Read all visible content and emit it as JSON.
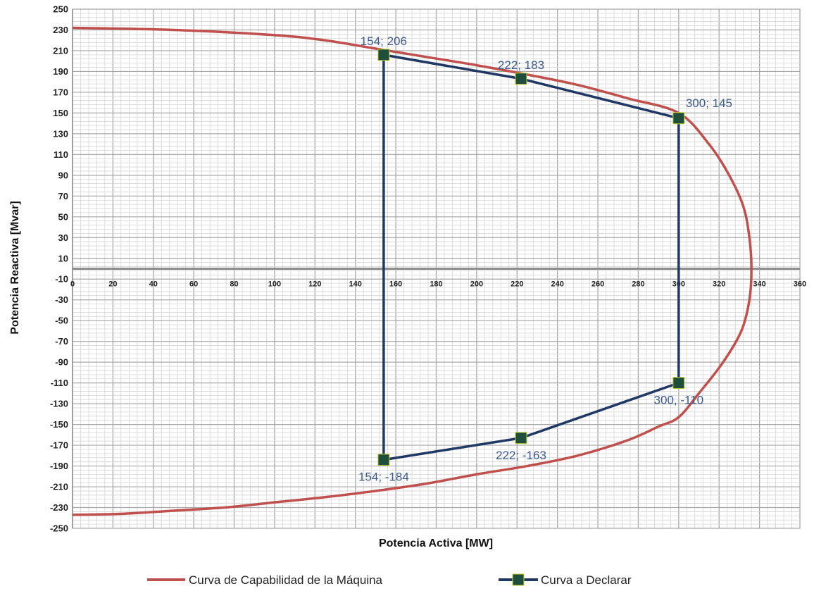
{
  "chart_data": {
    "type": "line",
    "title": "",
    "xlabel": "Potencia Activa [MW]",
    "ylabel": "Potencia Reactiva [Mvar]",
    "xlim": [
      0,
      360
    ],
    "ylim": [
      -250,
      250
    ],
    "x_ticks": [
      0,
      20,
      40,
      60,
      80,
      100,
      120,
      140,
      160,
      180,
      200,
      220,
      240,
      260,
      280,
      300,
      320,
      340,
      360
    ],
    "x_tick_labels": [
      "0",
      "20",
      "40",
      "60",
      "80",
      "100",
      "120",
      "140",
      "160",
      "180",
      "200",
      "220",
      "240",
      "260",
      "280",
      "300",
      "320",
      "340",
      "360"
    ],
    "y_ticks": [
      250,
      230,
      210,
      190,
      170,
      150,
      130,
      110,
      90,
      70,
      50,
      30,
      10,
      -10,
      -30,
      -50,
      -70,
      -90,
      -110,
      -130,
      -150,
      -170,
      -190,
      -210,
      -230,
      -250
    ],
    "y_tick_labels": [
      "250",
      "230",
      "210",
      "190",
      "170",
      "150",
      "130",
      "110",
      "90",
      "70",
      "50",
      "30",
      "10",
      "-10",
      "-30",
      "-50",
      "-70",
      "-90",
      "-110",
      "-130",
      "-150",
      "-170",
      "-190",
      "-210",
      "-230",
      "-250"
    ],
    "grid": true,
    "legend_position": "bottom",
    "series": [
      {
        "name": "Curva de Capabilidad de la Máquina",
        "color": "#c0504d",
        "marker": "none",
        "x": [
          0,
          50,
          100,
          125,
          150,
          175,
          200,
          225,
          250,
          275,
          300,
          315,
          325,
          332,
          335,
          336,
          335,
          331,
          322,
          310,
          300,
          290,
          275,
          250,
          225,
          200,
          175,
          150,
          125,
          100,
          75,
          50,
          25,
          0
        ],
        "y": [
          232,
          230,
          225,
          220,
          212,
          204,
          196,
          187,
          177,
          164,
          150,
          120,
          90,
          60,
          30,
          0,
          -30,
          -60,
          -90,
          -120,
          -143,
          -152,
          -165,
          -180,
          -190,
          -198,
          -207,
          -214,
          -220,
          -225,
          -230,
          -233,
          -236,
          -237
        ]
      },
      {
        "name": "Curva a Declarar",
        "color": "#1f3864",
        "marker": "square",
        "marker_fill": "#1f4e3d",
        "marker_edge": "#c8d630",
        "x": [
          154,
          222,
          300,
          300,
          222,
          154,
          154
        ],
        "y": [
          206,
          183,
          145,
          -110,
          -163,
          -184,
          206
        ]
      }
    ],
    "annotations": [
      {
        "text": "154; 206",
        "x": 154,
        "y": 206,
        "anchor": "above"
      },
      {
        "text": "222; 183",
        "x": 222,
        "y": 183,
        "anchor": "above"
      },
      {
        "text": "300; 145",
        "x": 300,
        "y": 145,
        "anchor": "above-right"
      },
      {
        "text": "300, -110",
        "x": 300,
        "y": -110,
        "anchor": "below"
      },
      {
        "text": "222; -163",
        "x": 222,
        "y": -163,
        "anchor": "below"
      },
      {
        "text": "154; -184",
        "x": 154,
        "y": -184,
        "anchor": "below"
      }
    ]
  }
}
